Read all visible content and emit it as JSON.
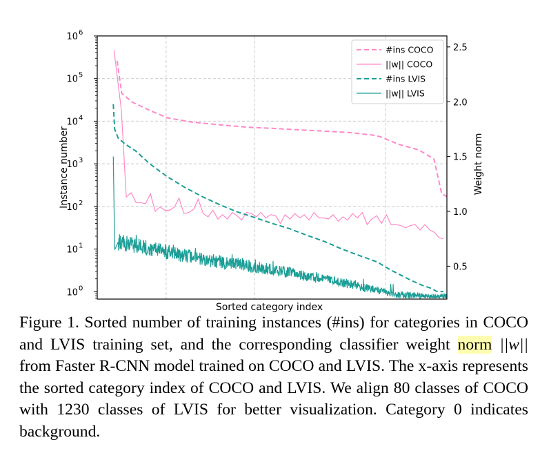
{
  "chart_data": {
    "type": "line",
    "xlabel": "Sorted category index",
    "ylabel": "Instance number",
    "y2label": "Weight norm",
    "yscale": "log",
    "ylim": [
      0.67,
      1000000
    ],
    "y_ticks": [
      {
        "value": 1,
        "base": "10",
        "exp": "0"
      },
      {
        "value": 10,
        "base": "10",
        "exp": "1"
      },
      {
        "value": 100,
        "base": "10",
        "exp": "2"
      },
      {
        "value": 1000,
        "base": "10",
        "exp": "3"
      },
      {
        "value": 10000,
        "base": "10",
        "exp": "4"
      },
      {
        "value": 100000,
        "base": "10",
        "exp": "5"
      },
      {
        "value": 1000000,
        "base": "10",
        "exp": "6"
      }
    ],
    "y2lim": [
      0.2,
      2.6
    ],
    "y2_ticks": [
      {
        "value": 0.5,
        "label": "0.5"
      },
      {
        "value": 1.0,
        "label": "1.0"
      },
      {
        "value": 1.5,
        "label": "1.5"
      },
      {
        "value": 2.0,
        "label": "2.0"
      },
      {
        "value": 2.5,
        "label": "2.5"
      }
    ],
    "xlim": [
      0,
      1
    ],
    "x_grid": [
      0.197,
      0.449,
      0.825
    ],
    "grid": true,
    "legend_position": "top-right",
    "series": [
      {
        "name": "#ins COCO",
        "axis": "left",
        "style": "dashed",
        "color": "#ff88c8",
        "x": [
          0.057,
          0.07,
          0.1,
          0.15,
          0.2,
          0.27,
          0.35,
          0.43,
          0.5,
          0.57,
          0.64,
          0.72,
          0.79,
          0.81,
          0.86,
          0.92,
          0.963,
          0.985,
          1.0
        ],
        "y": [
          260000,
          45000,
          28000,
          18000,
          12000,
          9500,
          8200,
          7200,
          6800,
          6300,
          5900,
          5400,
          4700,
          4300,
          2900,
          2100,
          1300,
          200,
          170
        ]
      },
      {
        "name": "||w|| COCO",
        "axis": "right",
        "style": "solid",
        "color": "#ff88c8",
        "x": [
          0.048,
          0.069,
          0.083,
          0.097,
          0.111,
          0.124,
          0.138,
          0.152,
          0.166,
          0.179,
          0.193,
          0.207,
          0.221,
          0.234,
          0.248,
          0.262,
          0.276,
          0.289,
          0.303,
          0.317,
          0.331,
          0.345,
          0.358,
          0.372,
          0.386,
          0.4,
          0.413,
          0.427,
          0.441,
          0.455,
          0.468,
          0.482,
          0.496,
          0.51,
          0.524,
          0.537,
          0.551,
          0.565,
          0.579,
          0.592,
          0.606,
          0.62,
          0.634,
          0.648,
          0.661,
          0.675,
          0.689,
          0.703,
          0.716,
          0.73,
          0.744,
          0.758,
          0.772,
          0.785,
          0.799,
          0.813,
          0.827,
          0.84,
          0.854,
          0.868,
          0.882,
          0.895,
          0.909,
          0.923,
          0.937,
          0.951,
          0.964,
          0.978,
          0.99
        ],
        "y": [
          2.47,
          1.92,
          1.13,
          1.17,
          1.08,
          1.08,
          1.07,
          1.16,
          1.0,
          1.04,
          1.01,
          1.01,
          1.04,
          1.12,
          0.98,
          0.99,
          1.02,
          1.11,
          0.98,
          0.95,
          1.01,
          0.93,
          0.97,
          0.93,
          0.99,
          0.96,
          0.92,
          0.99,
          0.98,
          0.95,
          0.99,
          0.94,
          0.97,
          0.96,
          0.89,
          0.97,
          0.93,
          0.98,
          0.94,
          0.97,
          0.92,
          0.99,
          0.94,
          0.94,
          0.93,
          0.97,
          0.91,
          0.95,
          0.92,
          0.98,
          0.94,
          0.99,
          0.88,
          0.93,
          0.96,
          0.89,
          0.97,
          0.88,
          0.88,
          0.87,
          0.85,
          0.87,
          0.88,
          0.83,
          0.88,
          0.83,
          0.81,
          0.76,
          0.75
        ]
      },
      {
        "name": "#ins LVIS",
        "axis": "left",
        "style": "dashed",
        "color": "#1a9e96",
        "x": [
          0.046,
          0.05,
          0.06,
          0.08,
          0.11,
          0.15,
          0.2,
          0.25,
          0.3,
          0.35,
          0.4,
          0.45,
          0.5,
          0.55,
          0.6,
          0.65,
          0.7,
          0.75,
          0.8,
          0.84,
          0.87,
          0.9,
          0.93,
          0.955,
          0.97,
          0.99
        ],
        "y": [
          25000,
          6500,
          4000,
          2900,
          2000,
          1000,
          500,
          280,
          170,
          110,
          75,
          55,
          40,
          30,
          21,
          15,
          10,
          7,
          5,
          3.2,
          2.4,
          1.8,
          1.4,
          1.2,
          1.02,
          1.0
        ]
      },
      {
        "name": "||w|| LVIS",
        "axis": "right",
        "style": "solid",
        "color": "#1a9e96",
        "seed": 42,
        "x": [
          0.046,
          0.05,
          0.06,
          0.1,
          0.2,
          0.3,
          0.4,
          0.5,
          0.6,
          0.7,
          0.8,
          0.85,
          0.9,
          0.95,
          1.0
        ],
        "y": [
          1.5,
          0.65,
          0.72,
          0.69,
          0.63,
          0.56,
          0.52,
          0.47,
          0.41,
          0.35,
          0.28,
          0.24,
          0.23,
          0.22,
          0.22
        ]
      }
    ]
  },
  "caption": {
    "text_1": "Figure 1. Sorted number of training instances (#ins) for categories in COCO and LVIS training set, and the corresponding classifier weight ",
    "highlight": "norm",
    "math": "||w||",
    "text_2": " from Faster R-CNN model trained on COCO and LVIS. The x-axis represents the sorted category index of COCO and LVIS. We align 80 classes of COCO with 1230 classes of LVIS for better visualization. Category 0 indicates background."
  }
}
